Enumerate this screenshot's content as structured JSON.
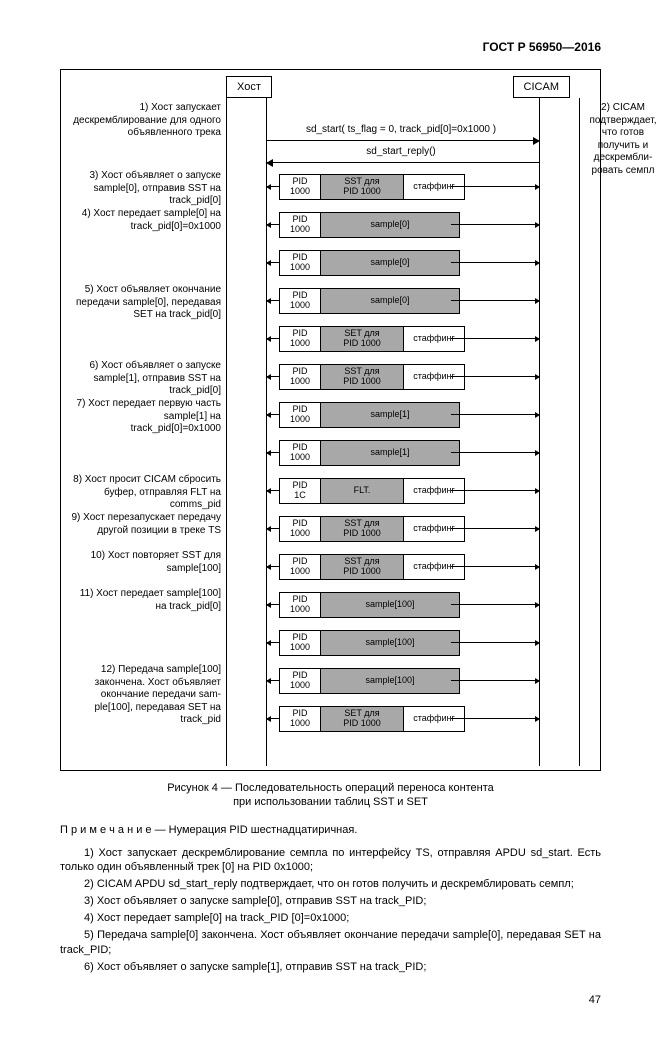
{
  "header": "ГОСТ Р 56950—2016",
  "actors": {
    "host": "Хост",
    "cicam": "CICAM"
  },
  "msg1": "sd_start( ts_flag = 0, track_pid[0]=0x1000 )",
  "msg2": "sd_start_reply()",
  "note1": "1) Хост запускает дескремблирование для одного объяв­ленного трека",
  "note2": "2) CICAM подтвержда­ет, что готов получить и дескрембли­ровать семпл",
  "steps": [
    {
      "label": "3) Хост объявляет о запуске sample[0], отправив SST на track_pid[0]",
      "pid": "PID\n1000",
      "mid": "SST для\nPID 1000",
      "stuff": "стаффинг",
      "midw": 78
    },
    {
      "label": "4) Хост передает sample[0] на track_pid­[0]=0x1000",
      "pid": "PID\n1000",
      "mid": "sample[0]",
      "stuff": "",
      "midw": 134
    },
    {
      "label": "",
      "pid": "PID\n1000",
      "mid": "sample[0]",
      "stuff": "",
      "midw": 134
    },
    {
      "label": "5) Хост объявляет окончание передачи sample[0], передавая SET на track_pid[0]",
      "pid": "PID\n1000",
      "mid": "sample[0]",
      "stuff": "",
      "midw": 134
    },
    {
      "label": "",
      "pid": "PID\n1000",
      "mid": "SET для\nPID 1000",
      "stuff": "стаффинг",
      "midw": 78
    },
    {
      "label": "6) Хост объявляет о запуске sample[1], отправив SST на track_pid[0]",
      "pid": "PID\n1000",
      "mid": "SST для\nPID 1000",
      "stuff": "стаффинг",
      "midw": 78
    },
    {
      "label": "7) Хост передает первую часть sample[1] на track_pid[0]=0x1000",
      "pid": "PID\n1000",
      "mid": "sample[1]",
      "stuff": "",
      "midw": 134
    },
    {
      "label": "",
      "pid": "PID\n1000",
      "mid": "sample[1]",
      "stuff": "",
      "midw": 134
    },
    {
      "label": "8) Хост просит CICAM сбросить бу­фер, отправляя FLT на comms_pid",
      "pid": "PID\n1C",
      "mid": "FLT.",
      "stuff": "стаффинг",
      "midw": 78
    },
    {
      "label": "9) Хост перезапускает передачу другой по­зиции в треке TS",
      "pid": "PID\n1000",
      "mid": "SST для\nPID 1000",
      "stuff": "стаффинг",
      "midw": 78
    },
    {
      "label": "10) Хост повторяет SST для sample[100]",
      "pid": "PID\n1000",
      "mid": "SST для\nPID 1000",
      "stuff": "стаффинг",
      "midw": 78
    },
    {
      "label": "11) Хост передает sample[100] на track_pid[0]",
      "pid": "PID\n1000",
      "mid": "sample[100]",
      "stuff": "",
      "midw": 134
    },
    {
      "label": "",
      "pid": "PID\n1000",
      "mid": "sample[100]",
      "stuff": "",
      "midw": 134
    },
    {
      "label": "12) Передача sample[100] закончена. Хост объявляет окон­чание передачи sam­ple[100], передавая SET на track_pid",
      "pid": "PID\n1000",
      "mid": "sample[100]",
      "stuff": "",
      "midw": 134
    },
    {
      "label": "",
      "pid": "PID\n1000",
      "mid": "SET для\nPID 1000",
      "stuff": "стаффинг",
      "midw": 78
    }
  ],
  "caption": "Рисунок 4 — Последовательность операций переноса контента\nпри использовании таблиц SST и SET",
  "notetext": "П р и м е ч а н и е   —  Нумерация PID шестнадцатиричная.",
  "body": [
    "1)  Хост запускает дескремблирование семпла по интерфейсу TS, отправляя APDU sd_start. Есть только один объявленный трек [0] на PID 0x1000;",
    "2)  CICAM APDU sd_start_reply подтверждает, что он готов получить и дескремблировать семпл;",
    "3)  Хост объявляет о запуске sample[0], отправив SST на track_PID;",
    "4)  Хост передает sample[0] на track_PID [0]=0x1000;",
    "5)  Передача sample[0] закончена. Хост объявляет окончание передачи sample[0], передавая SET на track_PID;",
    "6)  Хост объявляет о запуске sample[1], отправив SST на track_PID;"
  ],
  "pagenum": "47"
}
